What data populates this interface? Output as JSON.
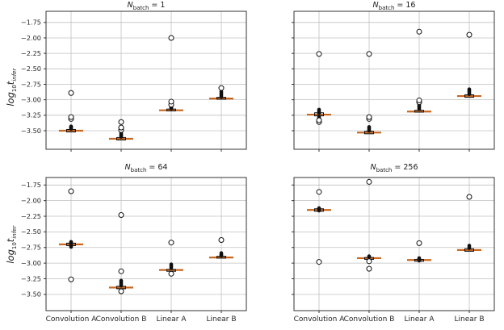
{
  "figure": {
    "background": "#ffffff",
    "grid_color": "#c0c0c0",
    "axis_color": "#333333",
    "tick_label_color": "#262626",
    "median_color": "#c9671f",
    "point_color": "#111111"
  },
  "ylabel": {
    "func": "log",
    "base": "10",
    "var": "t",
    "sub": "infer"
  },
  "chart_data": {
    "type": "boxplot",
    "grid": true,
    "categories": [
      "Convolution A",
      "Convolution B",
      "Linear A",
      "Linear B"
    ],
    "ytick_values": [
      -1.75,
      -2.0,
      -2.25,
      -2.5,
      -2.75,
      -3.0,
      -3.25,
      -3.5
    ],
    "ytick_labels": [
      "−1.75",
      "−2.00",
      "−2.25",
      "−2.50",
      "−2.75",
      "−3.00",
      "−3.25",
      "−3.50"
    ],
    "ylabel_text": "log10 t_infer",
    "subplots": [
      {
        "title_var": "N",
        "title_sub": "batch",
        "title_rest": " = 1",
        "row": 0,
        "col": 0,
        "ylim": [
          -3.8,
          -1.57
        ],
        "groups": [
          {
            "category": "Convolution A",
            "median": -3.5,
            "box": [
              -3.52,
              -3.48
            ],
            "cluster": [
              -3.47,
              -3.46,
              -3.45,
              -3.44,
              -3.43
            ],
            "outliers": [
              -3.31,
              -3.28,
              -2.89
            ]
          },
          {
            "category": "Convolution B",
            "median": -3.63,
            "box": [
              -3.65,
              -3.61
            ],
            "cluster": [
              -3.6,
              -3.58,
              -3.57,
              -3.56,
              -3.54
            ],
            "outliers": [
              -3.49,
              -3.45,
              -3.36
            ]
          },
          {
            "category": "Linear A",
            "median": -3.17,
            "box": [
              -3.18,
              -3.15
            ],
            "cluster": [
              -3.14,
              -3.13,
              -3.12
            ],
            "outliers": [
              -3.08,
              -3.03,
              -2.0
            ]
          },
          {
            "category": "Linear B",
            "median": -2.98,
            "box": [
              -2.99,
              -2.96
            ],
            "cluster": [
              -2.95,
              -2.93,
              -2.91,
              -2.89,
              -2.87
            ],
            "outliers": [
              -2.81
            ]
          }
        ]
      },
      {
        "title_var": "N",
        "title_sub": "batch",
        "title_rest": " = 16",
        "row": 0,
        "col": 1,
        "ylim": [
          -3.8,
          -1.57
        ],
        "groups": [
          {
            "category": "Convolution A",
            "median": -3.24,
            "box": [
              -3.26,
              -3.21
            ],
            "cluster": [
              -3.3,
              -3.28,
              -3.22,
              -3.2,
              -3.18,
              -3.16
            ],
            "outliers": [
              -3.36,
              -3.33,
              -2.26
            ]
          },
          {
            "category": "Convolution B",
            "median": -3.53,
            "box": [
              -3.55,
              -3.51
            ],
            "cluster": [
              -3.5,
              -3.48,
              -3.46,
              -3.44
            ],
            "outliers": [
              -3.31,
              -3.28,
              -2.26
            ]
          },
          {
            "category": "Linear A",
            "median": -3.19,
            "box": [
              -3.2,
              -3.17
            ],
            "cluster": [
              -3.15,
              -3.13,
              -3.11,
              -3.09,
              -3.07
            ],
            "outliers": [
              -3.04,
              -3.01,
              -1.9
            ]
          },
          {
            "category": "Linear B",
            "median": -2.94,
            "box": [
              -2.96,
              -2.92
            ],
            "cluster": [
              -2.91,
              -2.89,
              -2.87,
              -2.85,
              -2.83
            ],
            "outliers": [
              -1.95
            ]
          }
        ]
      },
      {
        "title_var": "N",
        "title_sub": "batch",
        "title_rest": " = 64",
        "row": 1,
        "col": 0,
        "ylim": [
          -3.76,
          -1.63
        ],
        "groups": [
          {
            "category": "Convolution A",
            "median": -2.7,
            "box": [
              -2.72,
              -2.68
            ],
            "cluster": [
              -2.74,
              -2.73,
              -2.69,
              -2.67,
              -2.66
            ],
            "outliers": [
              -3.26,
              -1.85
            ]
          },
          {
            "category": "Convolution B",
            "median": -3.39,
            "box": [
              -3.41,
              -3.37
            ],
            "cluster": [
              -3.36,
              -3.34,
              -3.32,
              -3.3,
              -3.28
            ],
            "outliers": [
              -3.45,
              -3.13,
              -2.23
            ]
          },
          {
            "category": "Linear A",
            "median": -3.11,
            "box": [
              -3.13,
              -3.1
            ],
            "cluster": [
              -3.08,
              -3.06,
              -3.04,
              -3.02
            ],
            "outliers": [
              -3.17,
              -2.67
            ]
          },
          {
            "category": "Linear B",
            "median": -2.91,
            "box": [
              -2.92,
              -2.89
            ],
            "cluster": [
              -2.88,
              -2.87,
              -2.86,
              -2.84
            ],
            "outliers": [
              -2.63
            ]
          }
        ]
      },
      {
        "title_var": "N",
        "title_sub": "batch",
        "title_rest": " = 256",
        "row": 1,
        "col": 1,
        "ylim": [
          -3.76,
          -1.63
        ],
        "groups": [
          {
            "category": "Convolution A",
            "median": -2.15,
            "box": [
              -2.17,
              -2.13
            ],
            "cluster": [
              -2.16,
              -2.14,
              -2.12
            ],
            "outliers": [
              -2.98,
              -1.86
            ]
          },
          {
            "category": "Convolution B",
            "median": -2.92,
            "box": [
              -2.94,
              -2.91
            ],
            "cluster": [
              -2.9,
              -2.89
            ],
            "outliers": [
              -2.97,
              -3.09,
              -1.7
            ]
          },
          {
            "category": "Linear A",
            "median": -2.95,
            "box": [
              -2.97,
              -2.94
            ],
            "cluster": [
              -2.96,
              -2.93,
              -2.92
            ],
            "outliers": [
              -2.68
            ]
          },
          {
            "category": "Linear B",
            "median": -2.79,
            "box": [
              -2.81,
              -2.77
            ],
            "cluster": [
              -2.76,
              -2.74,
              -2.72
            ],
            "outliers": [
              -1.94
            ]
          }
        ]
      }
    ]
  }
}
